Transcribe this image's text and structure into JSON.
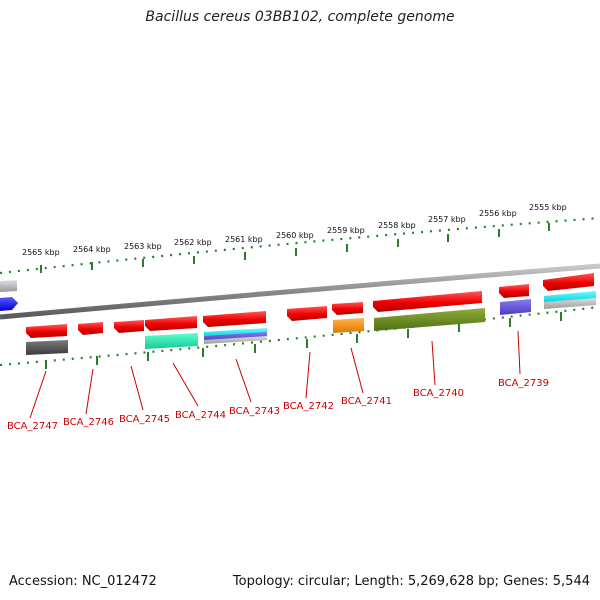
{
  "title": "Bacillus cereus 03BB102, complete genome",
  "footer": {
    "accession": "Accession: NC_012472",
    "summary": "Topology: circular; Length: 5,269,628 bp; Genes: 5,544"
  },
  "colors": {
    "backbone": "#8a8a8a",
    "tick": "#2a7d2a",
    "gene_forward": "#ee0000",
    "gene_reverse": "#0000ee",
    "label": "#cc0000"
  },
  "kbp_labels": [
    "2565 kbp",
    "2564 kbp",
    "2563 kbp",
    "2562 kbp",
    "2561 kbp",
    "2560 kbp",
    "2559 kbp",
    "2558 kbp",
    "2557 kbp",
    "2556 kbp",
    "2555 kbp"
  ],
  "gene_labels": [
    "BCA_2747",
    "BCA_2746",
    "BCA_2745",
    "BCA_2744",
    "BCA_2743",
    "BCA_2742",
    "BCA_2741",
    "BCA_2740",
    "BCA_2739"
  ]
}
